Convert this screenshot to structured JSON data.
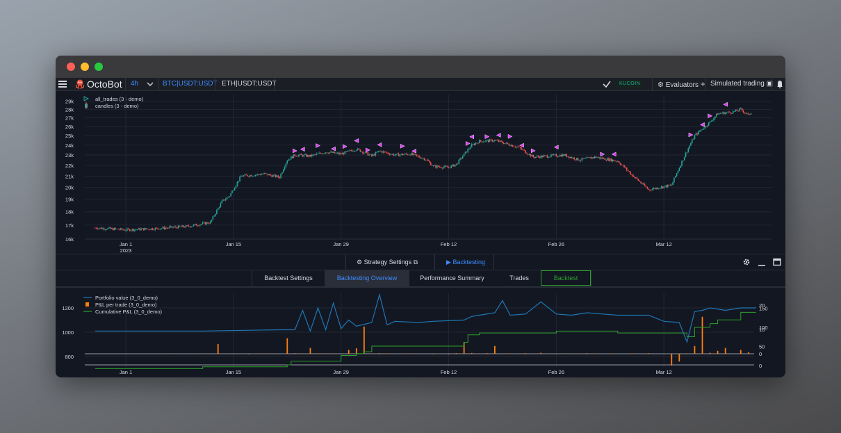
{
  "navbar": {
    "brand": "OctoBot",
    "timeframe": "4h",
    "pairs": [
      "BTC|USDT:USDT",
      "ETH|USDT:USDT"
    ],
    "exchange": "KUCOIN",
    "evaluators_label": "Evaluators",
    "simulated_label": "Simulated trading"
  },
  "toolbar": {
    "strategy_settings": "Strategy Settings",
    "backtesting": "Backtesting"
  },
  "tabs": [
    {
      "label": "Backtest Settings",
      "active": false
    },
    {
      "label": "Backtesting Overview",
      "active": true
    },
    {
      "label": "Performance Summary",
      "active": false
    },
    {
      "label": "Trades",
      "active": false
    },
    {
      "label": "Backtest",
      "active": false,
      "outlined": true
    }
  ],
  "colors": {
    "accent_blue": "#3d8bfd",
    "up": "#26a69a",
    "down": "#ef5350",
    "trade_marker": "#e040fb",
    "portfolio": "#1f77b4",
    "pnl_bar": "#ff7f0e",
    "cumulative": "#2ca02c",
    "backtest_outline": "#2ca02c"
  },
  "chart_data": [
    {
      "type": "candlestick",
      "legend": [
        "all_trades (3 - demo)",
        "candles (3 - demo)"
      ],
      "x_tick_labels": [
        "Jan 1",
        "Jan 15",
        "Jan 29",
        "Feb 12",
        "Feb 26",
        "Mar 12"
      ],
      "x_tick_sublabel": "2023",
      "y_tick_labels": [
        "16k",
        "17k",
        "18k",
        "19k",
        "20k",
        "21k",
        "22k",
        "23k",
        "24k",
        "25k",
        "26k",
        "27k",
        "28k",
        "29k"
      ],
      "y_scale": "log",
      "ylim": [
        16000,
        29500
      ],
      "xlim_days": [
        0,
        82
      ],
      "price_path": {
        "days": [
          -4,
          0,
          4,
          8,
          11,
          12.5,
          13.5,
          15,
          18,
          20,
          21,
          22,
          24,
          26,
          28,
          30,
          32,
          33,
          35,
          37,
          39,
          40,
          42,
          43,
          45,
          46,
          48,
          51,
          53,
          57,
          59,
          61,
          64,
          66,
          68,
          71,
          74,
          76,
          77,
          79,
          80,
          81,
          81.5
        ],
        "close": [
          16800,
          16650,
          16750,
          16900,
          17200,
          18800,
          19300,
          21000,
          21200,
          20900,
          22500,
          23000,
          22900,
          23300,
          23100,
          23600,
          22900,
          23400,
          23000,
          23100,
          22600,
          21900,
          21800,
          22100,
          24000,
          24400,
          24500,
          23800,
          22800,
          23000,
          22500,
          22800,
          22400,
          21000,
          19800,
          20200,
          25000,
          26500,
          27500,
          27700,
          28000,
          27300,
          27800
        ]
      },
      "trade_markers_days": [
        22,
        23,
        25,
        27,
        28.5,
        30,
        31.5,
        33,
        36,
        37.5,
        44.5,
        45,
        47,
        48.5,
        50,
        51.5,
        53,
        56,
        62,
        63.5,
        73.5,
        75,
        76,
        78
      ]
    },
    {
      "type": "line+bar",
      "legend": [
        "Portfolio value (3_0_demo)",
        "P&L per trade (3_0_demo)",
        "Cumulative P&L (3_0_demo)"
      ],
      "x_tick_labels": [
        "Jan 1",
        "Jan 15",
        "Jan 29",
        "Feb 12",
        "Feb 26",
        "Mar 12"
      ],
      "y_left_tick_labels": [
        "800",
        "1000",
        "1200"
      ],
      "y_right_tick_labels_1": [
        "0",
        "50",
        "100",
        "150"
      ],
      "y_right_tick_labels_2": [
        "0",
        "10",
        "20"
      ],
      "portfolio_value": {
        "days": [
          -4,
          10,
          20,
          22,
          23,
          24,
          25,
          26,
          27,
          28,
          29,
          30,
          32,
          33,
          34,
          35,
          38,
          40,
          44,
          45,
          46,
          48,
          49,
          50,
          52,
          54,
          56,
          58,
          60,
          62,
          64,
          68,
          70,
          72,
          73,
          74,
          75,
          76,
          78,
          80,
          82
        ],
        "values": [
          1010,
          1010,
          1020,
          1020,
          1180,
          1010,
          1200,
          1020,
          1240,
          1030,
          1100,
          1050,
          1080,
          1310,
          1060,
          1090,
          1080,
          1090,
          1100,
          1130,
          1140,
          1160,
          1260,
          1140,
          1150,
          1250,
          1150,
          1140,
          1160,
          1150,
          1140,
          1140,
          1090,
          1080,
          920,
          1170,
          1180,
          1200,
          1180,
          1200,
          1200
        ]
      },
      "pnl_per_trade": {
        "days": [
          6,
          10,
          12,
          14,
          16,
          18,
          19,
          21,
          22,
          23,
          24,
          25,
          26,
          27,
          29,
          30,
          31,
          32,
          33,
          34,
          36,
          37,
          40,
          42,
          43,
          44,
          45,
          46,
          47,
          48,
          50,
          52,
          54,
          55,
          57,
          60,
          61,
          63,
          66,
          68,
          71,
          72,
          73,
          74,
          75,
          76,
          77,
          78,
          80,
          81
        ],
        "values": [
          2,
          1,
          50,
          2,
          -1,
          1,
          2,
          80,
          3,
          2,
          30,
          2,
          2,
          1,
          20,
          28,
          140,
          1,
          3,
          2,
          1,
          2,
          -2,
          -1,
          3,
          60,
          4,
          2,
          3,
          40,
          2,
          3,
          5,
          1,
          2,
          3,
          1,
          2,
          2,
          3,
          -60,
          -40,
          2,
          40,
          190,
          5,
          15,
          30,
          20,
          8
        ]
      },
      "cumulative_pnl": {
        "days": [
          -4,
          9,
          10,
          21,
          21.5,
          28,
          29,
          30,
          31,
          32,
          38,
          44,
          44.5,
          46,
          47,
          56,
          64,
          66,
          72,
          73,
          74,
          76,
          77,
          80,
          82
        ],
        "values": [
          -2,
          -2,
          -1,
          0,
          2,
          5,
          5,
          6,
          7,
          10,
          10,
          12,
          16,
          17,
          17,
          18,
          17,
          17,
          17,
          15,
          20,
          22,
          24,
          28,
          28
        ]
      }
    }
  ]
}
